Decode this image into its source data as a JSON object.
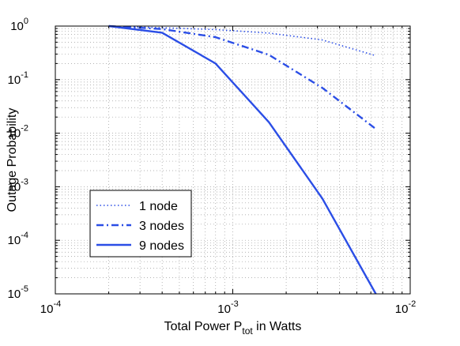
{
  "chart_data": {
    "type": "line",
    "xlabel": {
      "prefix": "Total Power P",
      "subscript": "tot",
      "suffix": " in Watts"
    },
    "ylabel": "Outage Probability",
    "x_scale": "log",
    "y_scale": "log",
    "xlim": [
      0.0001,
      0.01
    ],
    "ylim": [
      1e-05,
      1
    ],
    "grid": true,
    "grid_style": "dotted",
    "legend_position": "lower-left",
    "x_ticks": [
      {
        "value": 0.0001,
        "base": "10",
        "exp": "-4"
      },
      {
        "value": 0.001,
        "base": "10",
        "exp": "-3"
      },
      {
        "value": 0.01,
        "base": "10",
        "exp": "-2"
      }
    ],
    "y_ticks": [
      {
        "value": 1e-05,
        "base": "10",
        "exp": "-5"
      },
      {
        "value": 0.0001,
        "base": "10",
        "exp": "-4"
      },
      {
        "value": 0.001,
        "base": "10",
        "exp": "-3"
      },
      {
        "value": 0.01,
        "base": "10",
        "exp": "-2"
      },
      {
        "value": 0.1,
        "base": "10",
        "exp": "-1"
      },
      {
        "value": 1,
        "base": "10",
        "exp": "0"
      }
    ],
    "series": [
      {
        "name": "1 node",
        "style": "dotted",
        "color": "#2b4ee6",
        "x": [
          0.0002,
          0.0004,
          0.0008,
          0.0016,
          0.0032,
          0.0064
        ],
        "y": [
          1.0,
          0.93,
          0.86,
          0.74,
          0.55,
          0.28
        ]
      },
      {
        "name": "3 nodes",
        "style": "dashdot",
        "color": "#2b4ee6",
        "x": [
          0.0002,
          0.0004,
          0.0008,
          0.0016,
          0.0032,
          0.0064
        ],
        "y": [
          1.0,
          0.88,
          0.62,
          0.29,
          0.07,
          0.012
        ]
      },
      {
        "name": "9 nodes",
        "style": "solid",
        "color": "#2b4ee6",
        "x": [
          0.0002,
          0.0004,
          0.0008,
          0.0016,
          0.0032,
          0.0064
        ],
        "y": [
          1.0,
          0.75,
          0.2,
          0.016,
          0.0006,
          1e-05
        ]
      }
    ]
  }
}
